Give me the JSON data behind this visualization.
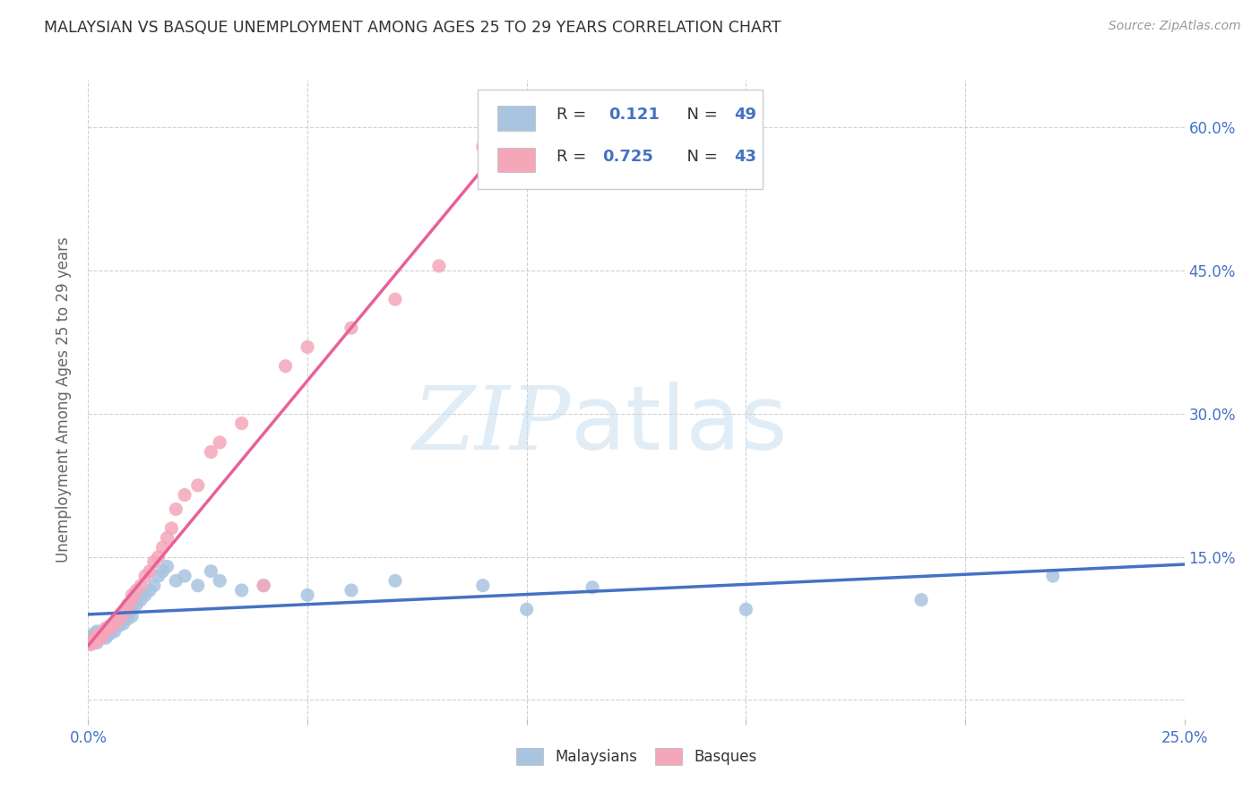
{
  "title": "MALAYSIAN VS BASQUE UNEMPLOYMENT AMONG AGES 25 TO 29 YEARS CORRELATION CHART",
  "source": "Source: ZipAtlas.com",
  "ylabel": "Unemployment Among Ages 25 to 29 years",
  "xlim": [
    0.0,
    0.25
  ],
  "ylim": [
    -0.02,
    0.65
  ],
  "malaysian_color": "#a8c4e0",
  "basque_color": "#f4a7b9",
  "malaysian_line_color": "#4472c4",
  "basque_line_color": "#e8609a",
  "r_malaysian": "0.121",
  "n_malaysian": "49",
  "r_basque": "0.725",
  "n_basque": "43",
  "watermark_zip": "ZIP",
  "watermark_atlas": "atlas",
  "background_color": "#ffffff",
  "grid_color": "#d0d0d0",
  "legend_text_color": "#4472c4",
  "tick_color": "#4472c4",
  "malaysian_scatter_x": [
    0.0005,
    0.001,
    0.0015,
    0.002,
    0.002,
    0.0025,
    0.003,
    0.003,
    0.0035,
    0.004,
    0.004,
    0.0045,
    0.005,
    0.005,
    0.0055,
    0.006,
    0.006,
    0.007,
    0.007,
    0.008,
    0.008,
    0.009,
    0.009,
    0.01,
    0.01,
    0.011,
    0.012,
    0.013,
    0.014,
    0.015,
    0.016,
    0.017,
    0.018,
    0.02,
    0.022,
    0.025,
    0.028,
    0.03,
    0.035,
    0.04,
    0.05,
    0.06,
    0.07,
    0.09,
    0.1,
    0.115,
    0.15,
    0.19,
    0.22
  ],
  "malaysian_scatter_y": [
    0.065,
    0.068,
    0.07,
    0.072,
    0.06,
    0.065,
    0.07,
    0.068,
    0.072,
    0.075,
    0.065,
    0.068,
    0.075,
    0.07,
    0.075,
    0.08,
    0.072,
    0.082,
    0.078,
    0.085,
    0.08,
    0.09,
    0.085,
    0.095,
    0.088,
    0.1,
    0.105,
    0.11,
    0.115,
    0.12,
    0.13,
    0.135,
    0.14,
    0.125,
    0.13,
    0.12,
    0.135,
    0.125,
    0.115,
    0.12,
    0.11,
    0.115,
    0.125,
    0.12,
    0.095,
    0.118,
    0.095,
    0.105,
    0.13
  ],
  "basque_scatter_x": [
    0.0005,
    0.001,
    0.0015,
    0.002,
    0.002,
    0.003,
    0.003,
    0.004,
    0.004,
    0.005,
    0.005,
    0.006,
    0.006,
    0.007,
    0.007,
    0.008,
    0.008,
    0.009,
    0.009,
    0.01,
    0.01,
    0.011,
    0.012,
    0.013,
    0.014,
    0.015,
    0.016,
    0.017,
    0.018,
    0.019,
    0.02,
    0.022,
    0.025,
    0.028,
    0.03,
    0.035,
    0.04,
    0.045,
    0.05,
    0.06,
    0.07,
    0.08,
    0.09
  ],
  "basque_scatter_y": [
    0.058,
    0.06,
    0.065,
    0.062,
    0.068,
    0.065,
    0.07,
    0.072,
    0.075,
    0.075,
    0.078,
    0.08,
    0.082,
    0.085,
    0.088,
    0.09,
    0.092,
    0.095,
    0.1,
    0.105,
    0.11,
    0.115,
    0.12,
    0.13,
    0.135,
    0.145,
    0.15,
    0.16,
    0.17,
    0.18,
    0.2,
    0.215,
    0.225,
    0.26,
    0.27,
    0.29,
    0.12,
    0.35,
    0.37,
    0.39,
    0.42,
    0.455,
    0.58
  ]
}
